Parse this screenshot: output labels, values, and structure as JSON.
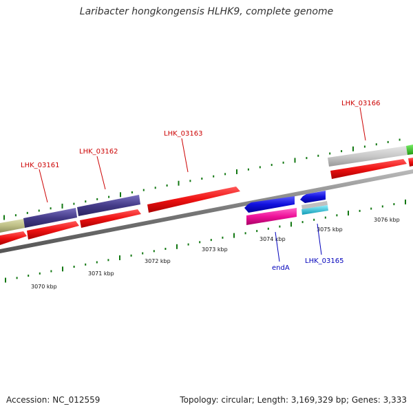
{
  "title": "Laribacter hongkongensis HLHK9, complete genome",
  "footer": {
    "accession": "Accession: NC_012559",
    "summary": "Topology: circular; Length: 3,169,329 bp; Genes: 3,333"
  },
  "ticks": [
    "3070 kbp",
    "3071 kbp",
    "3072 kbp",
    "3073 kbp",
    "3074 kbp",
    "3075 kbp",
    "3076 kbp"
  ],
  "gene_labels": {
    "forward": [
      "LHK_03161",
      "LHK_03162",
      "LHK_03163",
      "LHK_03166"
    ],
    "reverse": [
      "endA",
      "LHK_03165"
    ]
  },
  "colors": {
    "cds": "#ee1111",
    "gene_strand": "#443b88",
    "unknown": "#bdbe85",
    "misc": "#c8c8c8",
    "green_feature": "#33cc22",
    "rev_gene": "#1111dd",
    "rev_cds": "#ee1199",
    "rev_misc": "#22cce0",
    "backbone": "#888888",
    "tick": "#117711"
  }
}
